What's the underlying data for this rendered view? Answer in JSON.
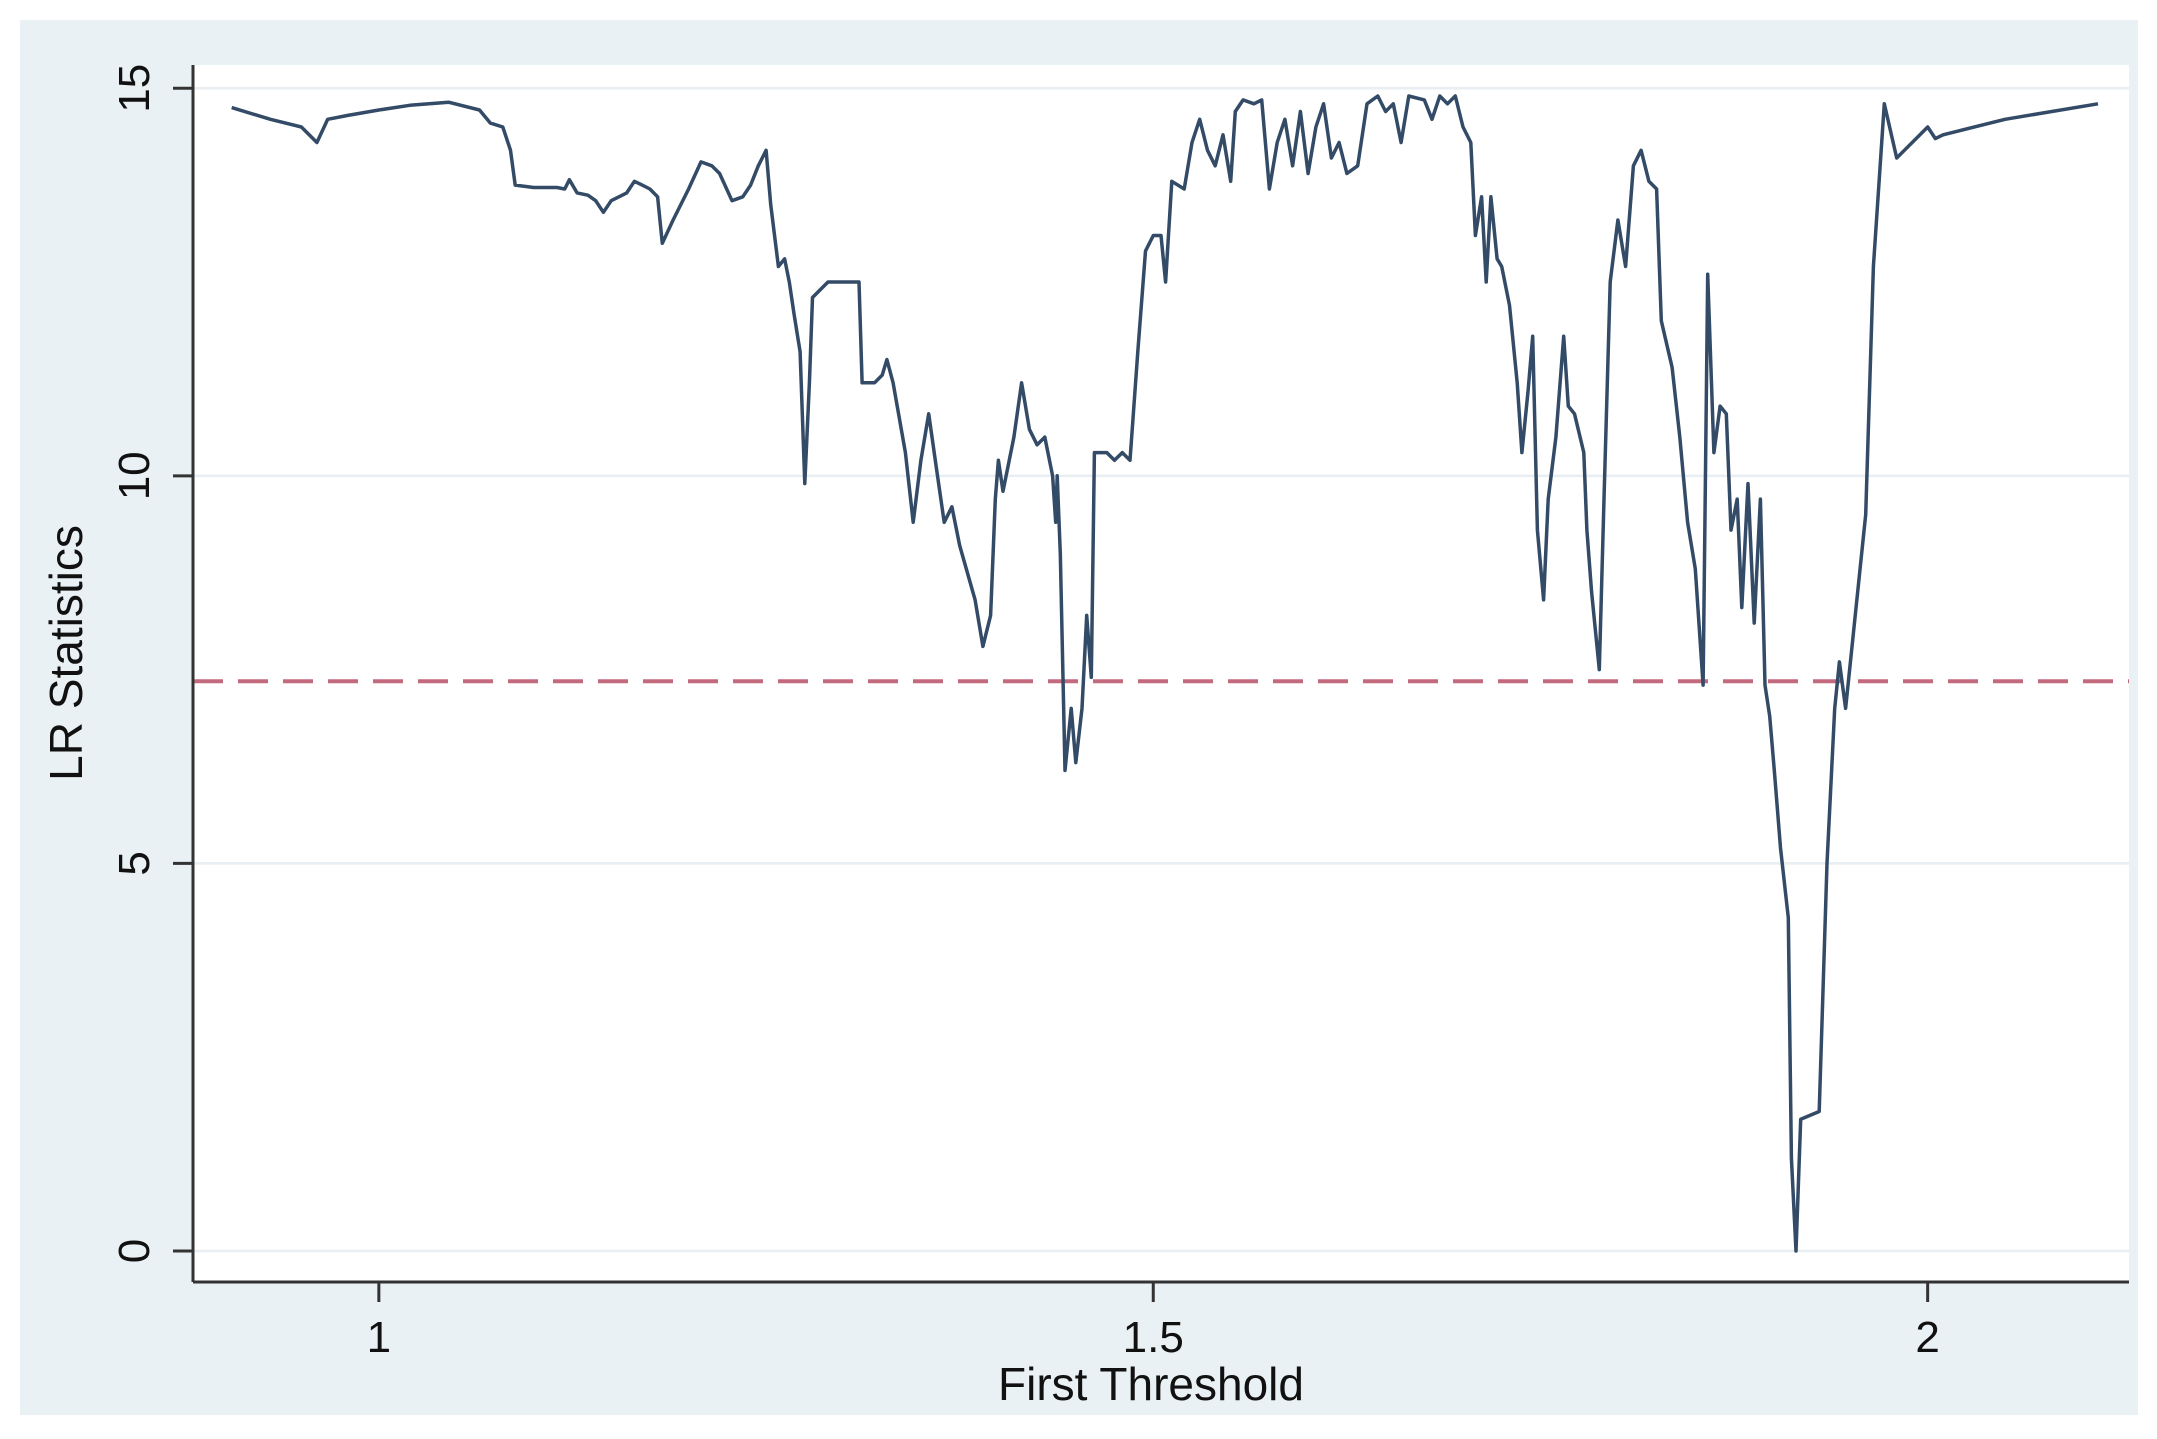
{
  "chart_data": {
    "type": "line",
    "xlabel": "First Threshold",
    "ylabel": "LR Statistics",
    "xlim": [
      0.88,
      2.13
    ],
    "ylim": [
      -0.4,
      15.3
    ],
    "xticks": [
      {
        "value": 1,
        "label": "1"
      },
      {
        "value": 1.5,
        "label": "1.5"
      },
      {
        "value": 2,
        "label": "2"
      }
    ],
    "yticks": [
      {
        "value": 0,
        "label": "0"
      },
      {
        "value": 5,
        "label": "5"
      },
      {
        "value": 10,
        "label": "10"
      },
      {
        "value": 15,
        "label": "15"
      }
    ],
    "grid": true,
    "reference_line": {
      "y": 7.35,
      "style": "dashed",
      "color": "#c46a7e"
    },
    "line_color": "#334b66",
    "series": [
      {
        "points": [
          [
            0.905,
            14.75
          ],
          [
            0.93,
            14.6
          ],
          [
            0.95,
            14.5
          ],
          [
            0.96,
            14.3
          ],
          [
            0.967,
            14.6
          ],
          [
            0.98,
            14.65
          ],
          [
            1.0,
            14.72
          ],
          [
            1.02,
            14.78
          ],
          [
            1.045,
            14.82
          ],
          [
            1.065,
            14.72
          ],
          [
            1.072,
            14.55
          ],
          [
            1.08,
            14.5
          ],
          [
            1.085,
            14.2
          ],
          [
            1.088,
            13.75
          ],
          [
            1.1,
            13.72
          ],
          [
            1.115,
            13.72
          ],
          [
            1.12,
            13.7
          ],
          [
            1.123,
            13.82
          ],
          [
            1.128,
            13.65
          ],
          [
            1.135,
            13.62
          ],
          [
            1.14,
            13.55
          ],
          [
            1.145,
            13.4
          ],
          [
            1.15,
            13.55
          ],
          [
            1.16,
            13.65
          ],
          [
            1.165,
            13.8
          ],
          [
            1.17,
            13.75
          ],
          [
            1.175,
            13.7
          ],
          [
            1.18,
            13.6
          ],
          [
            1.183,
            13.0
          ],
          [
            1.19,
            13.3
          ],
          [
            1.2,
            13.7
          ],
          [
            1.208,
            14.05
          ],
          [
            1.215,
            14.0
          ],
          [
            1.22,
            13.9
          ],
          [
            1.228,
            13.55
          ],
          [
            1.235,
            13.6
          ],
          [
            1.24,
            13.75
          ],
          [
            1.245,
            14.0
          ],
          [
            1.25,
            14.2
          ],
          [
            1.253,
            13.5
          ],
          [
            1.258,
            12.7
          ],
          [
            1.262,
            12.8
          ],
          [
            1.265,
            12.5
          ],
          [
            1.268,
            12.1
          ],
          [
            1.272,
            11.6
          ],
          [
            1.275,
            9.9
          ],
          [
            1.278,
            11.2
          ],
          [
            1.28,
            12.3
          ],
          [
            1.29,
            12.5
          ],
          [
            1.31,
            12.5
          ],
          [
            1.312,
            11.2
          ],
          [
            1.32,
            11.2
          ],
          [
            1.325,
            11.3
          ],
          [
            1.328,
            11.5
          ],
          [
            1.332,
            11.2
          ],
          [
            1.34,
            10.3
          ],
          [
            1.345,
            9.4
          ],
          [
            1.35,
            10.2
          ],
          [
            1.355,
            10.8
          ],
          [
            1.36,
            10.1
          ],
          [
            1.365,
            9.4
          ],
          [
            1.37,
            9.6
          ],
          [
            1.375,
            9.1
          ],
          [
            1.385,
            8.4
          ],
          [
            1.39,
            7.8
          ],
          [
            1.395,
            8.2
          ],
          [
            1.398,
            9.7
          ],
          [
            1.4,
            10.2
          ],
          [
            1.403,
            9.8
          ],
          [
            1.41,
            10.5
          ],
          [
            1.415,
            11.2
          ],
          [
            1.42,
            10.6
          ],
          [
            1.425,
            10.4
          ],
          [
            1.43,
            10.5
          ],
          [
            1.435,
            10.0
          ],
          [
            1.437,
            9.4
          ],
          [
            1.438,
            10.0
          ],
          [
            1.44,
            9.0
          ],
          [
            1.443,
            6.2
          ],
          [
            1.447,
            7.0
          ],
          [
            1.45,
            6.3
          ],
          [
            1.454,
            7.0
          ],
          [
            1.457,
            8.2
          ],
          [
            1.46,
            7.4
          ],
          [
            1.462,
            10.3
          ],
          [
            1.47,
            10.3
          ],
          [
            1.475,
            10.2
          ],
          [
            1.48,
            10.3
          ],
          [
            1.485,
            10.2
          ],
          [
            1.49,
            11.6
          ],
          [
            1.495,
            12.9
          ],
          [
            1.5,
            13.1
          ],
          [
            1.505,
            13.1
          ],
          [
            1.508,
            12.5
          ],
          [
            1.512,
            13.8
          ],
          [
            1.52,
            13.7
          ],
          [
            1.525,
            14.3
          ],
          [
            1.53,
            14.6
          ],
          [
            1.535,
            14.2
          ],
          [
            1.54,
            14.0
          ],
          [
            1.545,
            14.4
          ],
          [
            1.55,
            13.8
          ],
          [
            1.553,
            14.7
          ],
          [
            1.558,
            14.85
          ],
          [
            1.565,
            14.8
          ],
          [
            1.57,
            14.85
          ],
          [
            1.575,
            13.7
          ],
          [
            1.58,
            14.3
          ],
          [
            1.585,
            14.6
          ],
          [
            1.59,
            14.0
          ],
          [
            1.595,
            14.7
          ],
          [
            1.6,
            13.9
          ],
          [
            1.605,
            14.5
          ],
          [
            1.61,
            14.8
          ],
          [
            1.615,
            14.1
          ],
          [
            1.62,
            14.3
          ],
          [
            1.625,
            13.9
          ],
          [
            1.632,
            14.0
          ],
          [
            1.638,
            14.8
          ],
          [
            1.645,
            14.9
          ],
          [
            1.65,
            14.7
          ],
          [
            1.655,
            14.8
          ],
          [
            1.66,
            14.3
          ],
          [
            1.665,
            14.9
          ],
          [
            1.675,
            14.85
          ],
          [
            1.68,
            14.6
          ],
          [
            1.685,
            14.9
          ],
          [
            1.69,
            14.8
          ],
          [
            1.695,
            14.9
          ],
          [
            1.7,
            14.5
          ],
          [
            1.705,
            14.3
          ],
          [
            1.708,
            13.1
          ],
          [
            1.712,
            13.6
          ],
          [
            1.715,
            12.5
          ],
          [
            1.718,
            13.6
          ],
          [
            1.722,
            12.8
          ],
          [
            1.725,
            12.7
          ],
          [
            1.73,
            12.2
          ],
          [
            1.735,
            11.2
          ],
          [
            1.738,
            10.3
          ],
          [
            1.742,
            11.1
          ],
          [
            1.745,
            11.8
          ],
          [
            1.748,
            9.3
          ],
          [
            1.752,
            8.4
          ],
          [
            1.755,
            9.7
          ],
          [
            1.76,
            10.5
          ],
          [
            1.765,
            11.8
          ],
          [
            1.768,
            10.9
          ],
          [
            1.772,
            10.8
          ],
          [
            1.778,
            10.3
          ],
          [
            1.78,
            9.3
          ],
          [
            1.783,
            8.5
          ],
          [
            1.788,
            7.5
          ],
          [
            1.791,
            9.7
          ],
          [
            1.795,
            12.5
          ],
          [
            1.8,
            13.3
          ],
          [
            1.805,
            12.7
          ],
          [
            1.81,
            14.0
          ],
          [
            1.815,
            14.2
          ],
          [
            1.82,
            13.8
          ],
          [
            1.825,
            13.7
          ],
          [
            1.828,
            12.0
          ],
          [
            1.835,
            11.4
          ],
          [
            1.84,
            10.5
          ],
          [
            1.845,
            9.4
          ],
          [
            1.85,
            8.8
          ],
          [
            1.855,
            7.3
          ],
          [
            1.858,
            12.6
          ],
          [
            1.862,
            10.3
          ],
          [
            1.866,
            10.9
          ],
          [
            1.87,
            10.8
          ],
          [
            1.873,
            9.3
          ],
          [
            1.877,
            9.7
          ],
          [
            1.88,
            8.3
          ],
          [
            1.884,
            9.9
          ],
          [
            1.888,
            8.1
          ],
          [
            1.892,
            9.7
          ],
          [
            1.895,
            7.3
          ],
          [
            1.898,
            6.9
          ],
          [
            1.901,
            6.2
          ],
          [
            1.905,
            5.2
          ],
          [
            1.91,
            4.3
          ],
          [
            1.912,
            1.2
          ],
          [
            1.915,
            0.0
          ],
          [
            1.918,
            1.7
          ],
          [
            1.93,
            1.8
          ],
          [
            1.935,
            5.0
          ],
          [
            1.94,
            7.0
          ],
          [
            1.943,
            7.6
          ],
          [
            1.947,
            7.0
          ],
          [
            1.96,
            9.5
          ],
          [
            1.965,
            12.7
          ],
          [
            1.972,
            14.8
          ],
          [
            1.98,
            14.1
          ],
          [
            2.0,
            14.5
          ],
          [
            2.005,
            14.35
          ],
          [
            2.01,
            14.4
          ],
          [
            2.02,
            14.45
          ],
          [
            2.05,
            14.6
          ],
          [
            2.11,
            14.8
          ]
        ]
      }
    ]
  }
}
